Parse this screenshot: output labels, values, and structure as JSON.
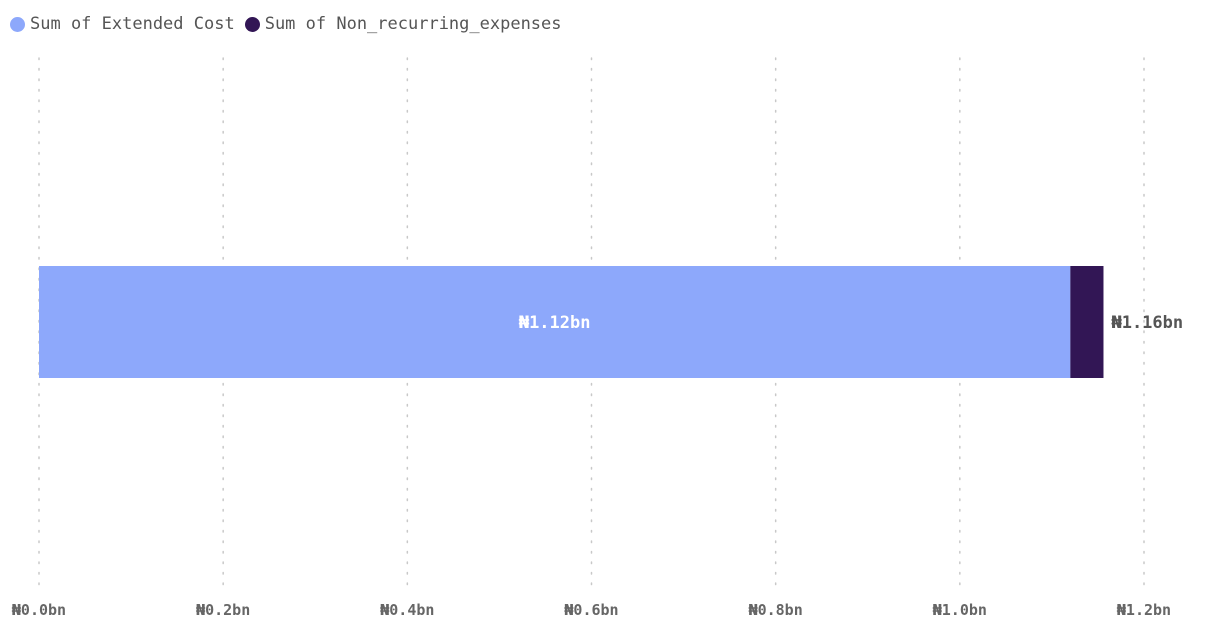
{
  "chart_data": {
    "type": "bar",
    "orientation": "horizontal",
    "stacked": true,
    "categories": [
      ""
    ],
    "series": [
      {
        "name": "Sum of Extended Cost",
        "values": [
          1120000000
        ],
        "color": "#8DA8FB"
      },
      {
        "name": "Sum of Non_recurring_expenses",
        "values": [
          36000000
        ],
        "color": "#321655"
      }
    ],
    "data_labels": [
      {
        "series": "Sum of Extended Cost",
        "text": "₦1.12bn",
        "position": "center"
      },
      {
        "series": "total",
        "text": "₦1.16bn",
        "position": "end"
      }
    ],
    "xlim": [
      0,
      1200000000
    ],
    "x_ticks": [
      0,
      200000000,
      400000000,
      600000000,
      800000000,
      1000000000,
      1200000000
    ],
    "x_tick_labels": [
      "₦0.0bn",
      "₦0.2bn",
      "₦0.4bn",
      "₦0.6bn",
      "₦0.8bn",
      "₦1.0bn",
      "₦1.2bn"
    ],
    "grid": "vertical-dotted",
    "legend": "top-left",
    "title": "",
    "xlabel": "",
    "ylabel": ""
  }
}
